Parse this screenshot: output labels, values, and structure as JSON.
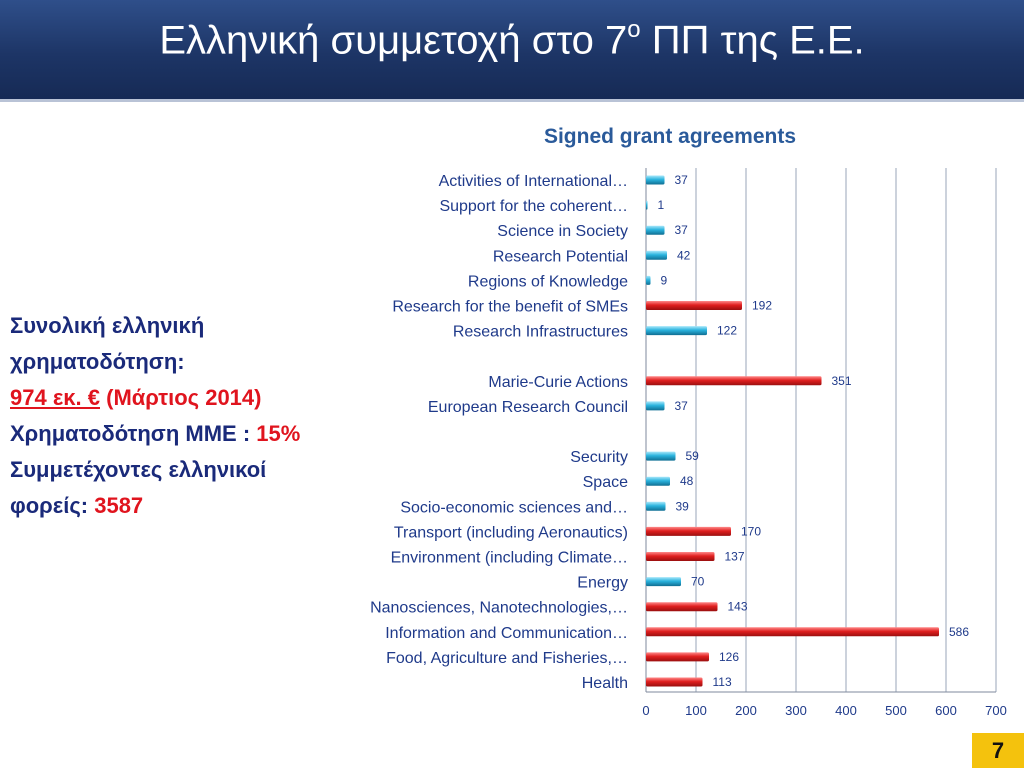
{
  "slide": {
    "title_main": "Ελληνική συμμετοχή στο 7",
    "title_sup": "ο",
    "title_tail": " ΠΠ της Ε.Ε.",
    "page_number": "7"
  },
  "summary": {
    "line1": "Συνολική ελληνική",
    "line2": "χρηματοδότηση:",
    "funding_amount": "974 εκ. €",
    "funding_date": " (Μάρτιος 2014)",
    "sme_label": "Χρηματοδότηση ΜΜΕ : ",
    "sme_value": "15%",
    "participants_line1": "Συμμετέχοντες ελληνικοί",
    "participants_label": "φορείς: ",
    "participants_value": "3587"
  },
  "colors": {
    "red_bar": "#e02020",
    "blue_bar": "#2ab3dd",
    "label_text": "#1f3a8a",
    "title_text": "#2a5a9a"
  },
  "chart_data": {
    "type": "bar",
    "orientation": "horizontal",
    "title": "Signed grant agreements",
    "xlim": [
      0,
      700
    ],
    "xticks": [
      0,
      100,
      200,
      300,
      400,
      500,
      600,
      700
    ],
    "grid": true,
    "categories": [
      "Activities of International…",
      "Support for the coherent…",
      "Science in Society",
      "Research Potential",
      "Regions of Knowledge",
      "Research for the benefit of SMEs",
      "Research Infrastructures",
      "",
      "Marie-Curie Actions",
      "European Research Council",
      "",
      "Security",
      "Space",
      "Socio-economic sciences and…",
      "Transport (including Aeronautics)",
      "Environment (including Climate…",
      "Energy",
      "Nanosciences, Nanotechnologies,…",
      "Information and Communication…",
      "Food, Agriculture and Fisheries,…",
      "Health"
    ],
    "values": [
      37,
      1,
      37,
      42,
      9,
      192,
      122,
      null,
      351,
      37,
      null,
      59,
      48,
      39,
      170,
      137,
      70,
      143,
      586,
      126,
      113
    ],
    "bar_colors": [
      "blue",
      "blue",
      "blue",
      "blue",
      "blue",
      "red",
      "blue",
      null,
      "red",
      "blue",
      null,
      "blue",
      "blue",
      "blue",
      "red",
      "red",
      "blue",
      "red",
      "red",
      "red",
      "red"
    ]
  }
}
